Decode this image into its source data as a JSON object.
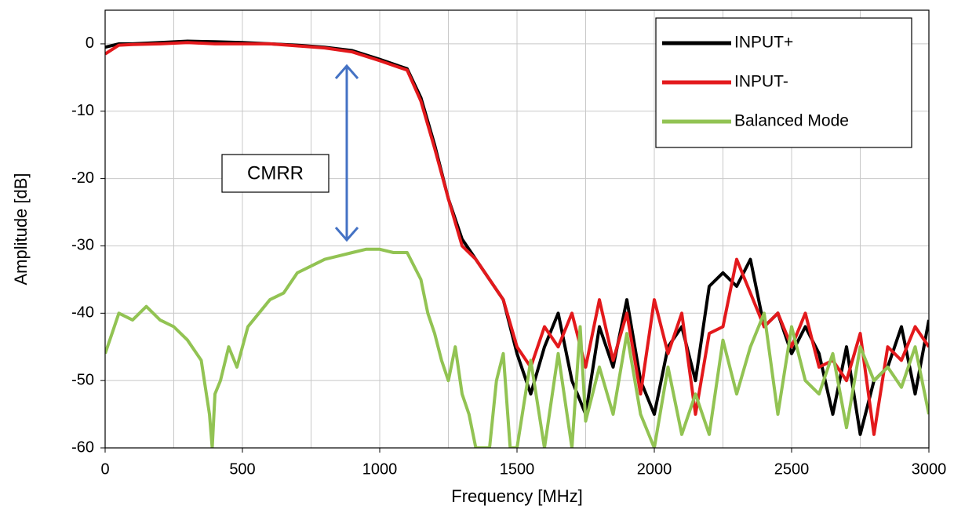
{
  "chart_data": {
    "type": "line",
    "xlabel": "Frequency [MHz]",
    "ylabel": "Amplitude [dB]",
    "xlim": [
      0,
      3000
    ],
    "ylim": [
      -60,
      5
    ],
    "xticks": [
      0,
      500,
      1000,
      1500,
      2000,
      2500,
      3000
    ],
    "xminorticks": [
      250,
      750,
      1250,
      1750,
      2250,
      2750
    ],
    "yticks": [
      -60,
      -50,
      -40,
      -30,
      -20,
      -10,
      0
    ],
    "grid": true,
    "legend": "upper right",
    "annotation": "CMRR",
    "series": [
      {
        "name": "INPUT+",
        "color": "#000000",
        "x": [
          0,
          50,
          100,
          200,
          300,
          400,
          500,
          600,
          700,
          800,
          900,
          1000,
          1100,
          1150,
          1200,
          1250,
          1300,
          1350,
          1400,
          1450,
          1500,
          1550,
          1600,
          1650,
          1700,
          1750,
          1800,
          1850,
          1900,
          1950,
          2000,
          2050,
          2100,
          2150,
          2200,
          2250,
          2300,
          2350,
          2400,
          2450,
          2500,
          2550,
          2600,
          2650,
          2700,
          2750,
          2800,
          2850,
          2900,
          2950,
          3000
        ],
        "values": [
          -0.5,
          0,
          0,
          0.2,
          0.4,
          0.3,
          0.2,
          0,
          -0.2,
          -0.5,
          -1,
          -2.3,
          -3.7,
          -8,
          -15,
          -23,
          -29,
          -32,
          -35,
          -38,
          -46,
          -52,
          -45,
          -40,
          -50,
          -55,
          -42,
          -48,
          -38,
          -50,
          -55,
          -45,
          -42,
          -50,
          -36,
          -34,
          -36,
          -32,
          -42,
          -40,
          -46,
          -42,
          -46,
          -55,
          -45,
          -58,
          -50,
          -48,
          -42,
          -52,
          -41
        ]
      },
      {
        "name": "INPUT-",
        "color": "#e3191c",
        "x": [
          0,
          50,
          100,
          200,
          300,
          400,
          500,
          600,
          700,
          800,
          900,
          1000,
          1100,
          1150,
          1200,
          1250,
          1300,
          1350,
          1400,
          1450,
          1500,
          1550,
          1600,
          1650,
          1700,
          1750,
          1800,
          1850,
          1900,
          1950,
          2000,
          2050,
          2100,
          2150,
          2200,
          2250,
          2300,
          2350,
          2400,
          2450,
          2500,
          2550,
          2600,
          2650,
          2700,
          2750,
          2800,
          2850,
          2900,
          2950,
          3000
        ],
        "values": [
          -1.5,
          -0.2,
          -0.1,
          0,
          0.2,
          0,
          0,
          0,
          -0.3,
          -0.6,
          -1.2,
          -2.5,
          -3.9,
          -8.5,
          -15.5,
          -23,
          -30,
          -32,
          -35,
          -38,
          -45,
          -48,
          -42,
          -45,
          -40,
          -48,
          -38,
          -47,
          -40,
          -52,
          -38,
          -46,
          -40,
          -55,
          -43,
          -42,
          -32,
          -37,
          -42,
          -40,
          -45,
          -40,
          -48,
          -47,
          -50,
          -43,
          -58,
          -45,
          -47,
          -42,
          -45
        ]
      },
      {
        "name": "Balanced Mode",
        "color": "#92c353",
        "x": [
          0,
          25,
          50,
          100,
          150,
          200,
          250,
          300,
          350,
          380,
          390,
          400,
          420,
          450,
          480,
          520,
          560,
          600,
          650,
          700,
          750,
          800,
          850,
          900,
          950,
          1000,
          1050,
          1100,
          1150,
          1175,
          1200,
          1225,
          1250,
          1275,
          1300,
          1325,
          1350,
          1400,
          1425,
          1450,
          1475,
          1500,
          1550,
          1600,
          1650,
          1700,
          1730,
          1750,
          1800,
          1850,
          1900,
          1950,
          2000,
          2050,
          2100,
          2150,
          2200,
          2250,
          2300,
          2350,
          2400,
          2450,
          2500,
          2550,
          2600,
          2650,
          2700,
          2750,
          2800,
          2850,
          2900,
          2950,
          3000
        ],
        "values": [
          -46,
          -43,
          -40,
          -41,
          -39,
          -41,
          -42,
          -44,
          -47,
          -55,
          -60,
          -52,
          -50,
          -45,
          -48,
          -42,
          -40,
          -38,
          -37,
          -34,
          -33,
          -32,
          -31.5,
          -31,
          -30.5,
          -30.5,
          -31,
          -31,
          -35,
          -40,
          -43,
          -47,
          -50,
          -45,
          -52,
          -55,
          -60,
          -60,
          -50,
          -46,
          -60,
          -60,
          -47,
          -60,
          -46,
          -60,
          -42,
          -56,
          -48,
          -55,
          -43,
          -55,
          -60,
          -48,
          -58,
          -52,
          -58,
          -44,
          -52,
          -45,
          -40,
          -55,
          -42,
          -50,
          -52,
          -46,
          -57,
          -45,
          -50,
          -48,
          -51,
          -45,
          -55
        ]
      }
    ]
  }
}
